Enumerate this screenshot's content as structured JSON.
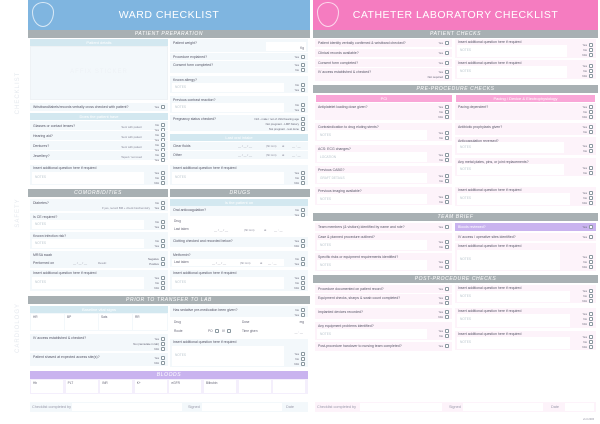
{
  "side_labels": [
    "CHECKLIST",
    "SAFETY",
    "CARDIOLOGY"
  ],
  "masks": {
    "date": "__ / __ / __",
    "time": "(hh:mm)",
    "at": "at",
    "clock": "__ : __"
  },
  "ward": {
    "title": "WARD CHECKLIST",
    "header_color": "#7fb5e0",
    "sections": {
      "prep": "PATIENT PREPARATION",
      "comorb": "COMORBIDITIES",
      "drugs": "DRUGS",
      "transfer": "PRIOR TO TRANSFER TO LAB",
      "bloods": "BLOODS"
    },
    "patient_details": "Patient details",
    "sticker": "AFFIX STICKER",
    "wristband": {
      "q": "Wristband/labels/records verbally cross checked with patient?",
      "o": [
        "Yes"
      ]
    },
    "does_have": "Does the patient have",
    "have": [
      {
        "q": "Glasses or contact lenses?",
        "note": "Sent with patient",
        "o": [
          "No",
          "Yes"
        ]
      },
      {
        "q": "Hearing aid?",
        "note": "Sent with patient",
        "o": [
          "No",
          "Yes"
        ]
      },
      {
        "q": "Dentures?",
        "note": "Sent with patient",
        "o": [
          "No",
          "Yes"
        ]
      },
      {
        "q": "Jewellery?",
        "note": "Taped / removed",
        "o": [
          "No",
          "Yes"
        ]
      }
    ],
    "ins1": {
      "q": "Insert additional question here if required",
      "ph": "NOTES",
      "o": [
        "Yes",
        "No",
        "N/A"
      ]
    },
    "weight": {
      "q": "Patient weight?",
      "unit": "Kg"
    },
    "explained": {
      "q": "Procedure explained?",
      "o": [
        "Yes"
      ]
    },
    "consent": {
      "q": "Consent form completed?",
      "o": [
        "Yes",
        "No"
      ]
    },
    "allergy": {
      "q": "Known allergy?",
      "ph": "NOTES",
      "o": [
        "No",
        "Yes"
      ]
    },
    "contrast": {
      "q": "Previous contrast reaction?",
      "ph": "NOTES",
      "o": [
        "No",
        "Yes"
      ]
    },
    "pregnancy": {
      "q": "Pregnancy status checked?",
      "o": [
        "N/A - male / not of child bearing age",
        "Not pregnant - LMP history",
        "Not pregnant - test done"
      ]
    },
    "oral": "Last oral intake",
    "intake": [
      "Clear fluids",
      "Other"
    ],
    "ins2": {
      "q": "Insert additional question here if required",
      "ph": "NOTES",
      "o": [
        "Yes",
        "No",
        "N/A"
      ]
    },
    "diabetes": {
      "q": "Diabetes?",
      "note": "If yes, record BM + check biochemistry",
      "o": [
        "No",
        "Yes"
      ]
    },
    "ce": {
      "q": "Is CE required?",
      "ph": "NOTES",
      "o": [
        "No",
        "Yes"
      ]
    },
    "infection": {
      "q": "Known infection risk?",
      "ph": "NOTES",
      "o": [
        "No",
        "Yes"
      ]
    },
    "mrsa": {
      "q": "MRSA swab",
      "performed": "Performed on",
      "result": "Result:",
      "o": [
        "Negative",
        "Positive"
      ]
    },
    "ins3": {
      "q": "Insert additional question here if required",
      "ph": "NOTES",
      "o": [
        "Yes",
        "No",
        "N/A"
      ]
    },
    "patient_on": "Is the patient on",
    "anticoag": {
      "q": "Oral anticoagulation?",
      "o": [
        "No",
        "Yes"
      ]
    },
    "drug": "Drug",
    "last_taken": "Last taken",
    "clotting": {
      "q": "Clotting checked and recorded below?",
      "o": [
        "Yes",
        "N/A"
      ]
    },
    "metformin": {
      "q": "Metformin?",
      "o": [
        "No",
        "Yes"
      ]
    },
    "ins4": {
      "q": "Insert additional question here if required",
      "ph": "NOTES",
      "o": [
        "Yes",
        "No",
        "N/A"
      ]
    },
    "vitals": {
      "title": "Baseline vital signs",
      "fields": [
        "HR",
        "BP",
        "Sats",
        "RR"
      ]
    },
    "iv": {
      "q": "IV access established & checked?",
      "o": [
        "Yes",
        "No (cannulate in lab)",
        "N/A"
      ]
    },
    "shaved": {
      "q": "Patient shaved at expected access site(s)?",
      "o": [
        "Yes",
        "N/A"
      ]
    },
    "sedative": {
      "q": "Has sedative pre-medication been given?",
      "o": [
        "No",
        "Yes"
      ]
    },
    "sed_drug": "Drug",
    "dose": "Dose",
    "mg": "mg",
    "route": "Route",
    "po": "PO",
    "ivr": "IV",
    "time_given": "Time given",
    "ins5": {
      "q": "Insert additional question here if required",
      "ph": "NOTES",
      "o": [
        "Yes",
        "No",
        "N/A"
      ]
    },
    "bloods": [
      "Hb",
      "PLT",
      "INR",
      "K+",
      "eGFR",
      "Bilirubin",
      "",
      ""
    ],
    "footer": {
      "completed": "Checklist completed by",
      "signed": "Signed",
      "date": "Date"
    }
  },
  "lab": {
    "title": "CATHETER LABORATORY CHECKLIST",
    "header_color": "#f57cc0",
    "sections": {
      "patient": "PATIENT CHECKS",
      "pre": "PRE-PROCEDURE CHECKS",
      "team": "TEAM BRIEF",
      "post": "POST-PROCEDURE CHECKS"
    },
    "identity": {
      "q": "Patient identity verbally confirmed & wristband checked?",
      "o": [
        "Yes"
      ]
    },
    "records": {
      "q": "Clinical records available?",
      "o": [
        "Yes"
      ]
    },
    "consent": {
      "q": "Consent form completed?",
      "o": [
        "Yes"
      ]
    },
    "iv": {
      "q": "IV access established & checked?",
      "o": [
        "Yes",
        "Not required"
      ]
    },
    "pins1": {
      "q": "Insert additional question here if required",
      "ph": "NOTES",
      "o": [
        "Yes",
        "No",
        "N/A"
      ]
    },
    "pins2": {
      "q": "Insert additional question here if required",
      "ph": "NOTES",
      "o": [
        "Yes",
        "No",
        "N/A"
      ]
    },
    "pci": "PCI",
    "pacing": "Pacing / Device & Electrophysiology",
    "antiplatelet": {
      "q": "Antiplatelet loading dose given?",
      "o": [
        "Yes",
        "No",
        "N/A"
      ]
    },
    "des": {
      "q": "Contraindication to drug eluting stents?",
      "ph": "NOTES",
      "o": [
        "Yes",
        "No"
      ]
    },
    "acs": {
      "q": "ACS: ECG changes?",
      "ph": "LOCATION",
      "o": [
        "Yes",
        "No"
      ]
    },
    "cabg": {
      "q": "Previous CABG?",
      "ph": "GRAFT DETAILS",
      "o": [
        "Yes",
        "No"
      ]
    },
    "imaging": {
      "q": "Previous imaging available?",
      "ph": "NOTES",
      "o": [
        "Yes",
        "No"
      ]
    },
    "pacing_dep": {
      "q": "Pacing dependent?",
      "o": [
        "Yes",
        "No",
        "N/A"
      ]
    },
    "antibiotic": {
      "q": "Antibiotic prophylaxis given?",
      "o": [
        "Yes",
        "No"
      ]
    },
    "reversed": {
      "q": "Anticoagulation reversed?",
      "ph": "NOTES",
      "o": [
        "Yes",
        "No"
      ]
    },
    "metal": {
      "q": "Any metal plates, pins, or joint replacements?",
      "ph": "NOTES",
      "o": [
        "Yes",
        "No"
      ]
    },
    "prins": {
      "q": "Insert additional question here if required",
      "ph": "NOTES",
      "o": [
        "Yes",
        "No",
        "N/A"
      ]
    },
    "team": {
      "q": "Team members (& visitors) identified by name and role?",
      "o": [
        "Yes"
      ]
    },
    "case": {
      "q": "Case & planned procedure outlined?",
      "ph": "NOTES",
      "o": [
        "Yes",
        "No"
      ]
    },
    "risks": {
      "q": "Specific risks or equipment requirements identified?",
      "ph": "NOTES",
      "o": [
        "Yes",
        "No"
      ]
    },
    "bloods": {
      "q": "Bloods reviewed?",
      "o": [
        "Yes"
      ]
    },
    "sites": {
      "q": "IV access / operative sites identified?",
      "o": [
        "Yes"
      ]
    },
    "tins": {
      "q": "Insert additional question here if required",
      "ph": "NOTES",
      "o": [
        "Yes",
        "No",
        "N/A"
      ]
    },
    "documented": {
      "q": "Procedure documented on patient record?",
      "o": [
        "Yes"
      ]
    },
    "equipment": {
      "q": "Equipment checks, sharps & swab count completed?",
      "o": [
        "Yes",
        "No"
      ]
    },
    "implanted": {
      "q": "Implanted devices recorded?",
      "o": [
        "Yes",
        "N/A"
      ]
    },
    "problems": {
      "q": "Any equipment problems identified?",
      "ph": "NOTES",
      "o": [
        "Yes",
        "No"
      ]
    },
    "handover": {
      "q": "Post-procedure handover to nursing team completed?",
      "o": [
        "Yes"
      ]
    },
    "oins1": {
      "q": "Insert additional question here if required",
      "ph": "NOTES",
      "o": [
        "Yes",
        "No",
        "N/A"
      ]
    },
    "oins2": {
      "q": "Insert additional question here if required",
      "ph": "NOTES",
      "o": [
        "Yes",
        "No",
        "N/A"
      ]
    },
    "oins3": {
      "q": "Insert additional question here if required",
      "ph": "NOTES",
      "o": [
        "Yes",
        "No",
        "N/A"
      ]
    },
    "footer": {
      "completed": "Checklist completed by",
      "signed": "Signed",
      "date": "Date"
    },
    "version": "v1.0 2015"
  }
}
